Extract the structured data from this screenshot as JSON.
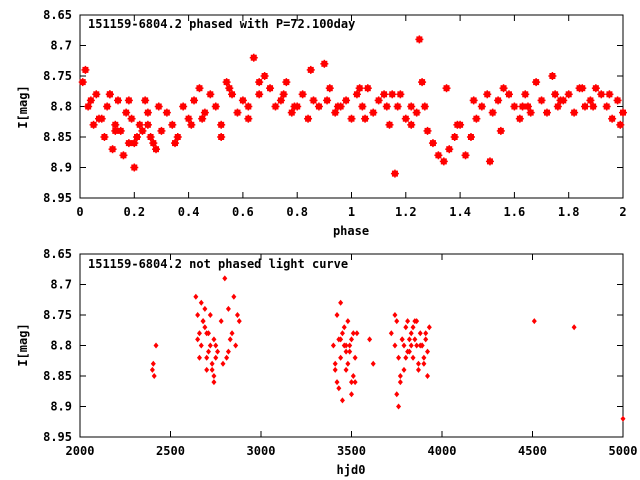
{
  "chart_data": [
    {
      "type": "scatter",
      "title": "151159-6804.2 phased with P=72.100day",
      "xlabel": "phase",
      "ylabel": "I[mag]",
      "xlim": [
        0,
        2
      ],
      "ylim": [
        8.95,
        8.65
      ],
      "y_inverted": true,
      "xticks": [
        "0",
        "0.2",
        "0.4",
        "0.6",
        "0.8",
        "1",
        "1.2",
        "1.4",
        "1.6",
        "1.8",
        "2"
      ],
      "yticks": [
        "8.65",
        "8.7",
        "8.75",
        "8.8",
        "8.85",
        "8.9",
        "8.95"
      ],
      "grid": false,
      "marker": "star",
      "color": "#ff0000",
      "series": [
        {
          "x": [
            0.01,
            0.03,
            0.05,
            0.06,
            0.08,
            0.09,
            0.1,
            0.11,
            0.12,
            0.13,
            0.14,
            0.15,
            0.16,
            0.17,
            0.18,
            0.19,
            0.2,
            0.21,
            0.22,
            0.23,
            0.24,
            0.25,
            0.26,
            0.27,
            0.28,
            0.3,
            0.32,
            0.34,
            0.36,
            0.38,
            0.4,
            0.42,
            0.44,
            0.46,
            0.48,
            0.5,
            0.52,
            0.54,
            0.56,
            0.58,
            0.6,
            0.62,
            0.64,
            0.66,
            0.68,
            0.7,
            0.72,
            0.74,
            0.76,
            0.78,
            0.8,
            0.82,
            0.84,
            0.86,
            0.88,
            0.9,
            0.92,
            0.94,
            0.96,
            0.98,
            1.0,
            1.02,
            1.04,
            1.06,
            1.08,
            1.1,
            1.12,
            1.14,
            1.16,
            1.17,
            1.18,
            1.2,
            1.22,
            1.24,
            1.25,
            1.26,
            1.28,
            1.3,
            1.32,
            1.34,
            1.36,
            1.38,
            1.4,
            1.42,
            1.44,
            1.46,
            1.48,
            1.5,
            1.52,
            1.54,
            1.56,
            1.58,
            1.6,
            1.62,
            1.64,
            1.66,
            1.68,
            1.7,
            1.72,
            1.74,
            1.76,
            1.78,
            1.8,
            1.82,
            1.84,
            1.86,
            1.88,
            1.9,
            1.92,
            1.94,
            1.96,
            1.98,
            2.0,
            0.02,
            0.07,
            0.13,
            0.2,
            0.25,
            0.35,
            0.45,
            0.55,
            0.62,
            0.75,
            0.85,
            0.95,
            1.05,
            1.15,
            1.22,
            1.35,
            1.45,
            1.55,
            1.65,
            1.75,
            1.85,
            1.95,
            0.04,
            0.11,
            0.18,
            0.29,
            0.41,
            0.52,
            0.66,
            0.79,
            0.91,
            1.03,
            1.13,
            1.27,
            1.39,
            1.51,
            1.63,
            1.77,
            1.89,
            1.99
          ],
          "y": [
            8.76,
            8.8,
            8.83,
            8.78,
            8.82,
            8.85,
            8.8,
            8.78,
            8.87,
            8.83,
            8.79,
            8.84,
            8.88,
            8.81,
            8.86,
            8.82,
            8.9,
            8.85,
            8.83,
            8.84,
            8.79,
            8.83,
            8.85,
            8.86,
            8.87,
            8.84,
            8.81,
            8.83,
            8.85,
            8.8,
            8.82,
            8.79,
            8.77,
            8.81,
            8.78,
            8.8,
            8.83,
            8.76,
            8.78,
            8.81,
            8.79,
            8.82,
            8.72,
            8.76,
            8.75,
            8.77,
            8.8,
            8.79,
            8.76,
            8.81,
            8.8,
            8.78,
            8.82,
            8.79,
            8.8,
            8.73,
            8.77,
            8.81,
            8.8,
            8.79,
            8.82,
            8.78,
            8.8,
            8.77,
            8.81,
            8.79,
            8.78,
            8.83,
            8.91,
            8.8,
            8.78,
            8.82,
            8.83,
            8.81,
            8.69,
            8.76,
            8.84,
            8.86,
            8.88,
            8.89,
            8.87,
            8.85,
            8.83,
            8.88,
            8.85,
            8.82,
            8.8,
            8.78,
            8.81,
            8.79,
            8.77,
            8.78,
            8.8,
            8.82,
            8.78,
            8.81,
            8.76,
            8.79,
            8.81,
            8.75,
            8.8,
            8.79,
            8.78,
            8.81,
            8.77,
            8.8,
            8.79,
            8.77,
            8.78,
            8.8,
            8.82,
            8.79,
            8.81,
            8.74,
            8.82,
            8.84,
            8.86,
            8.81,
            8.86,
            8.82,
            8.77,
            8.8,
            8.78,
            8.74,
            8.8,
            8.82,
            8.78,
            8.8,
            8.77,
            8.79,
            8.84,
            8.8,
            8.78,
            8.77,
            8.78,
            8.79,
            8.78,
            8.79,
            8.8,
            8.83,
            8.85,
            8.78,
            8.8,
            8.79,
            8.77,
            8.8,
            8.8,
            8.83,
            8.89,
            8.8,
            8.79,
            8.8,
            8.83
          ]
        }
      ]
    },
    {
      "type": "scatter",
      "title": "151159-6804.2 not phased light curve",
      "xlabel": "hjd0",
      "ylabel": "I[mag]",
      "xlim": [
        2000,
        5000
      ],
      "ylim": [
        8.95,
        8.65
      ],
      "y_inverted": true,
      "xticks": [
        "2000",
        "2500",
        "3000",
        "3500",
        "4000",
        "4500",
        "5000"
      ],
      "yticks": [
        "8.65",
        "8.7",
        "8.75",
        "8.8",
        "8.85",
        "8.9",
        "8.95"
      ],
      "grid": false,
      "marker": "diamond",
      "color": "#ff0000",
      "series": [
        {
          "x": [
            2400,
            2405,
            2410,
            2420,
            2640,
            2650,
            2660,
            2670,
            2680,
            2690,
            2700,
            2710,
            2720,
            2730,
            2740,
            2750,
            2760,
            2650,
            2670,
            2690,
            2710,
            2730,
            2750,
            2680,
            2700,
            2720,
            2740,
            2660,
            2700,
            2740,
            2780,
            2800,
            2820,
            2840,
            2860,
            2880,
            2790,
            2810,
            2830,
            2850,
            2870,
            2820,
            3400,
            3410,
            3420,
            3430,
            3440,
            3450,
            3460,
            3470,
            3480,
            3490,
            3500,
            3510,
            3520,
            3530,
            3410,
            3430,
            3450,
            3470,
            3490,
            3510,
            3420,
            3440,
            3460,
            3480,
            3500,
            3440,
            3470,
            3500,
            3520,
            3600,
            3620,
            3720,
            3740,
            3750,
            3760,
            3770,
            3780,
            3790,
            3800,
            3810,
            3820,
            3830,
            3840,
            3850,
            3860,
            3870,
            3880,
            3890,
            3900,
            3910,
            3920,
            3930,
            3750,
            3770,
            3790,
            3810,
            3830,
            3850,
            3870,
            3890,
            3910,
            3760,
            3800,
            3840,
            3880,
            3920,
            3740,
            3780,
            3820,
            3860,
            3900,
            4510,
            4730,
            5000
          ],
          "y": [
            8.84,
            8.83,
            8.85,
            8.8,
            8.72,
            8.75,
            8.78,
            8.8,
            8.76,
            8.74,
            8.82,
            8.78,
            8.8,
            8.84,
            8.86,
            8.82,
            8.81,
            8.79,
            8.73,
            8.77,
            8.81,
            8.83,
            8.8,
            8.76,
            8.78,
            8.75,
            8.85,
            8.82,
            8.84,
            8.79,
            8.76,
            8.69,
            8.74,
            8.78,
            8.8,
            8.76,
            8.83,
            8.82,
            8.79,
            8.72,
            8.75,
            8.81,
            8.8,
            8.83,
            8.86,
            8.79,
            8.82,
            8.78,
            8.8,
            8.84,
            8.76,
            8.81,
            8.79,
            8.85,
            8.82,
            8.78,
            8.84,
            8.87,
            8.89,
            8.81,
            8.8,
            8.78,
            8.75,
            8.73,
            8.77,
            8.83,
            8.86,
            8.79,
            8.8,
            8.88,
            8.86,
            8.79,
            8.83,
            8.78,
            8.8,
            8.76,
            8.82,
            8.85,
            8.79,
            8.8,
            8.77,
            8.81,
            8.79,
            8.78,
            8.82,
            8.76,
            8.8,
            8.84,
            8.78,
            8.8,
            8.82,
            8.79,
            8.81,
            8.77,
            8.88,
            8.86,
            8.84,
            8.76,
            8.8,
            8.79,
            8.83,
            8.8,
            8.78,
            8.9,
            8.82,
            8.77,
            8.8,
            8.85,
            8.75,
            8.79,
            8.81,
            8.76,
            8.83,
            8.76,
            8.77,
            8.92
          ]
        }
      ]
    }
  ]
}
